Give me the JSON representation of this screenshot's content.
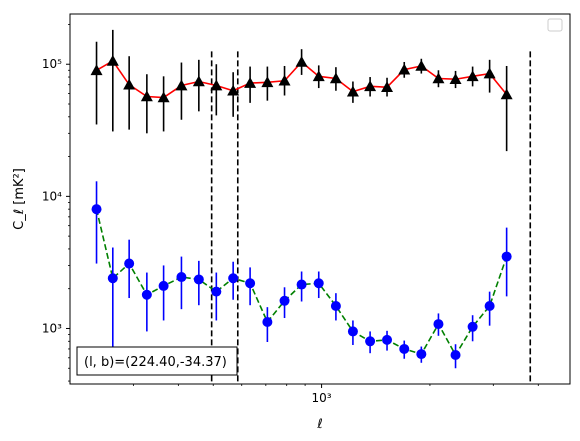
{
  "chart_data": {
    "type": "line",
    "title": "",
    "xlabel": "ℓ",
    "ylabel": "C_ℓ  [mK²]",
    "xscale": "log",
    "yscale": "log",
    "xlim": [
      200,
      4900
    ],
    "ylim": [
      380,
      240000
    ],
    "x_ticks": [
      {
        "value": 1000,
        "label": "10³"
      }
    ],
    "y_ticks": [
      {
        "value": 1000,
        "label": "10³"
      },
      {
        "value": 10000,
        "label": "10⁴"
      },
      {
        "value": 100000,
        "label": "10⁵"
      }
    ],
    "grid": false,
    "legend": {
      "position": "top-right",
      "entries": []
    },
    "annotation": "(l, b)=(224.40,-34.37)",
    "vlines": [
      {
        "x": 495,
        "style": "dashed",
        "color": "#000000",
        "y_top": 125000
      },
      {
        "x": 585,
        "style": "dashed",
        "color": "#000000",
        "y_top": 125000
      },
      {
        "x": 3800,
        "style": "dashed",
        "color": "#000000",
        "y_top": 125000
      }
    ],
    "series": [
      {
        "marker": "triangle",
        "line_color": "#ff0000",
        "marker_color": "#000000",
        "error_color": "#000000",
        "line_style": "solid",
        "points": [
          {
            "x": 237,
            "y": 90000,
            "err_low": 35000,
            "err_high": 148000
          },
          {
            "x": 263,
            "y": 106000,
            "err_low": 31000,
            "err_high": 182000
          },
          {
            "x": 292,
            "y": 70000,
            "err_low": 32000,
            "err_high": 115000
          },
          {
            "x": 327,
            "y": 57000,
            "err_low": 30000,
            "err_high": 84000
          },
          {
            "x": 364,
            "y": 56000,
            "err_low": 31000,
            "err_high": 81000
          },
          {
            "x": 408,
            "y": 69000,
            "err_low": 38000,
            "err_high": 103000
          },
          {
            "x": 456,
            "y": 74000,
            "err_low": 44000,
            "err_high": 108000
          },
          {
            "x": 510,
            "y": 69000,
            "err_low": 41000,
            "err_high": 100000
          },
          {
            "x": 568,
            "y": 63000,
            "err_low": 40000,
            "err_high": 87000
          },
          {
            "x": 633,
            "y": 72000,
            "err_low": 51000,
            "err_high": 96000
          },
          {
            "x": 707,
            "y": 73000,
            "err_low": 53000,
            "err_high": 96000
          },
          {
            "x": 789,
            "y": 75000,
            "err_low": 58000,
            "err_high": 97000
          },
          {
            "x": 880,
            "y": 104000,
            "err_low": 83000,
            "err_high": 130000
          },
          {
            "x": 982,
            "y": 81000,
            "err_low": 66000,
            "err_high": 98000
          },
          {
            "x": 1096,
            "y": 78000,
            "err_low": 63000,
            "err_high": 95000
          },
          {
            "x": 1222,
            "y": 62000,
            "err_low": 51000,
            "err_high": 74000
          },
          {
            "x": 1364,
            "y": 68000,
            "err_low": 57000,
            "err_high": 80000
          },
          {
            "x": 1520,
            "y": 67000,
            "err_low": 57000,
            "err_high": 79000
          },
          {
            "x": 1697,
            "y": 91000,
            "err_low": 79000,
            "err_high": 104000
          },
          {
            "x": 1893,
            "y": 97000,
            "err_low": 85000,
            "err_high": 110000
          },
          {
            "x": 2112,
            "y": 78000,
            "err_low": 67000,
            "err_high": 90000
          },
          {
            "x": 2356,
            "y": 77000,
            "err_low": 66000,
            "err_high": 89000
          },
          {
            "x": 2628,
            "y": 81000,
            "err_low": 68000,
            "err_high": 96000
          },
          {
            "x": 2930,
            "y": 85000,
            "err_low": 61000,
            "err_high": 108000
          },
          {
            "x": 3267,
            "y": 59000,
            "err_low": 22000,
            "err_high": 97000
          }
        ]
      },
      {
        "marker": "circle",
        "line_color": "#008000",
        "marker_color": "#0000ff",
        "error_color": "#0000ff",
        "line_style": "dashed",
        "points": [
          {
            "x": 237,
            "y": 8000,
            "err_low": 3100,
            "err_high": 13000
          },
          {
            "x": 263,
            "y": 2400,
            "err_low": 700,
            "err_high": 4100
          },
          {
            "x": 292,
            "y": 3100,
            "err_low": 1700,
            "err_high": 4700
          },
          {
            "x": 327,
            "y": 1800,
            "err_low": 950,
            "err_high": 2650
          },
          {
            "x": 364,
            "y": 2100,
            "err_low": 1150,
            "err_high": 3000
          },
          {
            "x": 408,
            "y": 2450,
            "err_low": 1400,
            "err_high": 3500
          },
          {
            "x": 456,
            "y": 2350,
            "err_low": 1500,
            "err_high": 3250
          },
          {
            "x": 510,
            "y": 1900,
            "err_low": 1150,
            "err_high": 2650
          },
          {
            "x": 568,
            "y": 2400,
            "err_low": 1650,
            "err_high": 3200
          },
          {
            "x": 633,
            "y": 2200,
            "err_low": 1500,
            "err_high": 2900
          },
          {
            "x": 707,
            "y": 1120,
            "err_low": 790,
            "err_high": 1450
          },
          {
            "x": 789,
            "y": 1620,
            "err_low": 1200,
            "err_high": 2050
          },
          {
            "x": 880,
            "y": 2150,
            "err_low": 1600,
            "err_high": 2700
          },
          {
            "x": 982,
            "y": 2200,
            "err_low": 1700,
            "err_high": 2700
          },
          {
            "x": 1096,
            "y": 1480,
            "err_low": 1150,
            "err_high": 1850
          },
          {
            "x": 1222,
            "y": 950,
            "err_low": 750,
            "err_high": 1150
          },
          {
            "x": 1364,
            "y": 800,
            "err_low": 650,
            "err_high": 950
          },
          {
            "x": 1520,
            "y": 820,
            "err_low": 680,
            "err_high": 960
          },
          {
            "x": 1697,
            "y": 700,
            "err_low": 590,
            "err_high": 810
          },
          {
            "x": 1893,
            "y": 640,
            "err_low": 550,
            "err_high": 730
          },
          {
            "x": 2112,
            "y": 1080,
            "err_low": 880,
            "err_high": 1300
          },
          {
            "x": 2356,
            "y": 630,
            "err_low": 500,
            "err_high": 760
          },
          {
            "x": 2628,
            "y": 1030,
            "err_low": 800,
            "err_high": 1260
          },
          {
            "x": 2930,
            "y": 1480,
            "err_low": 1050,
            "err_high": 1900
          },
          {
            "x": 3267,
            "y": 3500,
            "err_low": 1750,
            "err_high": 5800
          }
        ]
      }
    ]
  }
}
